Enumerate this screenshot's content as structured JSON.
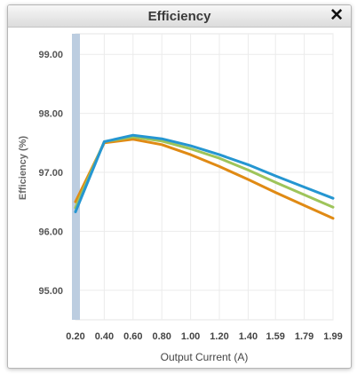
{
  "window": {
    "title": "Efficiency",
    "close_glyph": "✕"
  },
  "chart_data": {
    "type": "line",
    "xlabel": "Output Current (A)",
    "ylabel": "Efficiency (%)",
    "x_ticks": [
      "0.20",
      "0.40",
      "0.60",
      "0.80",
      "1.00",
      "1.20",
      "1.40",
      "1.59",
      "1.79",
      "1.99"
    ],
    "y_ticks": [
      "95.00",
      "96.00",
      "97.00",
      "98.00",
      "99.00"
    ],
    "xlim": [
      0.2,
      1.99
    ],
    "ylim": [
      94.5,
      99.35
    ],
    "x": [
      0.2,
      0.4,
      0.6,
      0.8,
      1.0,
      1.2,
      1.4,
      1.59,
      1.79,
      1.99
    ],
    "grid": true,
    "highlight_band": [
      0.2,
      0.2
    ],
    "series": [
      {
        "color": "#e08a14",
        "values": [
          96.5,
          97.5,
          97.56,
          97.47,
          97.3,
          97.1,
          96.88,
          96.66,
          96.44,
          96.22
        ]
      },
      {
        "color": "#9ec45a",
        "values": [
          96.4,
          97.52,
          97.6,
          97.53,
          97.4,
          97.24,
          97.04,
          96.83,
          96.62,
          96.41
        ]
      },
      {
        "color": "#2596d1",
        "values": [
          96.33,
          97.52,
          97.63,
          97.57,
          97.45,
          97.3,
          97.13,
          96.94,
          96.75,
          96.56
        ]
      }
    ]
  }
}
